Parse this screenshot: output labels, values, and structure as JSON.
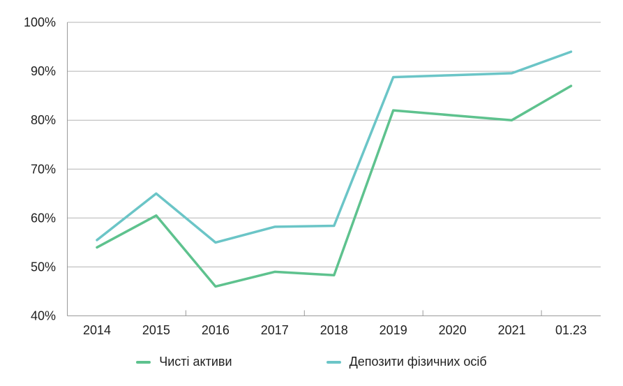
{
  "chart_data": {
    "type": "line",
    "title": "",
    "xlabel": "",
    "ylabel": "",
    "categories": [
      "2014",
      "2015",
      "2016",
      "2017",
      "2018",
      "2019",
      "2020",
      "2021",
      "01.23"
    ],
    "series": [
      {
        "name": "Чисті активи",
        "color": "#5ec28e",
        "values": [
          54,
          60.5,
          46,
          49,
          48.3,
          82,
          81,
          80,
          87
        ]
      },
      {
        "name": "Депозити фізичних осіб",
        "color": "#6bc5c7",
        "values": [
          55.5,
          65,
          55,
          58.2,
          58.4,
          88.8,
          89.2,
          89.6,
          94
        ]
      }
    ],
    "ylim": [
      40,
      100
    ],
    "y_ticks": [
      40,
      50,
      60,
      70,
      80,
      90,
      100
    ],
    "y_tick_labels": [
      "40%",
      "50%",
      "60%",
      "70%",
      "80%",
      "90%",
      "100%"
    ],
    "grid": true,
    "legend_position": "bottom"
  },
  "colors": {
    "grid": "#b3b3b3",
    "axis": "#999999",
    "text": "#1f1f1f",
    "background": "#ffffff"
  }
}
